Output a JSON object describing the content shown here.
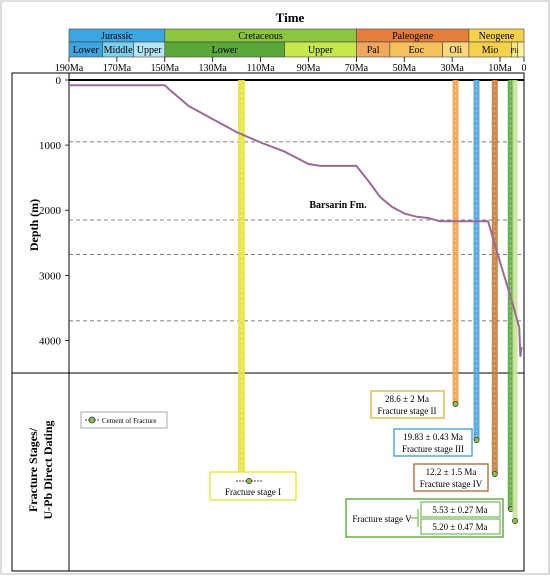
{
  "title": "Time",
  "eras": [
    {
      "label": "Jurassic",
      "start": 190,
      "end": 150,
      "color": "#3aa6e2"
    },
    {
      "label": "Cretaceous",
      "start": 150,
      "end": 70,
      "color": "#8cc63f"
    },
    {
      "label": "Paleogene",
      "start": 70,
      "end": 23,
      "color": "#e57e3a"
    },
    {
      "label": "Neogene",
      "start": 23,
      "end": 2.6,
      "color": "#f6d24c"
    }
  ],
  "epochs": [
    {
      "label": "Lower",
      "start": 190,
      "end": 176,
      "color": "#3aa6e2"
    },
    {
      "label": "Middle",
      "start": 176,
      "end": 163,
      "color": "#7fd0ee"
    },
    {
      "label": "Upper",
      "start": 163,
      "end": 150,
      "color": "#b3e5f5"
    },
    {
      "label": "Lower",
      "start": 150,
      "end": 100,
      "color": "#5aa83a"
    },
    {
      "label": "Upper",
      "start": 100,
      "end": 70,
      "color": "#c5e84a"
    },
    {
      "label": "Pal",
      "start": 70,
      "end": 56,
      "color": "#f0a85c"
    },
    {
      "label": "Eoc",
      "start": 56,
      "end": 34,
      "color": "#f7c25e"
    },
    {
      "label": "Oli",
      "start": 34,
      "end": 23,
      "color": "#fcd67a"
    },
    {
      "label": "Mio",
      "start": 23,
      "end": 5.3,
      "color": "#f6d24c"
    },
    {
      "label": "Pli",
      "start": 5.3,
      "end": 2.6,
      "color": "#f2ea7a"
    },
    {
      "label": "",
      "start": 2.6,
      "end": 0,
      "color": "#fff3a0"
    }
  ],
  "ticks": [
    "190Ma",
    "170Ma",
    "150Ma",
    "130Ma",
    "110Ma",
    "90Ma",
    "70Ma",
    "50Ma",
    "30Ma",
    "10Ma",
    "0"
  ],
  "tick_values": [
    190,
    170,
    150,
    130,
    110,
    90,
    70,
    50,
    30,
    10,
    0
  ],
  "colors": {
    "curve": "#9a6b95",
    "stage1": "#e6e63a",
    "stage2": "#f0a24a",
    "stage3": "#4aa3dc",
    "stage4": "#c77a3a",
    "stage5": "#5aa83a",
    "stage5b": "#c9e29a"
  },
  "chart_data": {
    "type": "line",
    "title": "Time",
    "xlabel": "",
    "ylabel": "Depth (m)",
    "xlim": [
      190,
      0
    ],
    "ylim": [
      0,
      4500
    ],
    "y_ticks": [
      0,
      1000,
      2000,
      3000,
      4000
    ],
    "y_tick_labels": [
      "0",
      "1000",
      "2000",
      "3000",
      "4000"
    ],
    "dashed_depths": [
      950,
      2150,
      2680,
      3700
    ],
    "series": [
      {
        "x": [
          190,
          150,
          148,
          140,
          130,
          120,
          110,
          100,
          90,
          85,
          80,
          75,
          70,
          65,
          60,
          55,
          50,
          45,
          40,
          35,
          30,
          25,
          20,
          15,
          10,
          5,
          2,
          1.5,
          1
        ],
        "y": [
          80,
          80,
          150,
          400,
          600,
          800,
          960,
          1100,
          1290,
          1320,
          1320,
          1320,
          1320,
          1550,
          1800,
          1950,
          2050,
          2100,
          2120,
          2170,
          2170,
          2170,
          2170,
          2170,
          2800,
          3400,
          3800,
          4250,
          4100
        ]
      }
    ]
  },
  "barsarin_label": "Barsarin Fm.",
  "lower_panel_label_line1": "Fracture Stages/",
  "lower_panel_label_line2": "U-Pb Direct Dating",
  "legend_label": "Cement of Fracture",
  "stages": [
    {
      "key": "stage1",
      "age": 118,
      "label": "Fracture stage I",
      "date": ""
    },
    {
      "key": "stage2",
      "age": 28.6,
      "label": "Fracture stage II",
      "date": "28.6 ± 2 Ma"
    },
    {
      "key": "stage3",
      "age": 19.83,
      "label": "Fracture stage III",
      "date": "19.83 ± 0.43 Ma"
    },
    {
      "key": "stage4",
      "age": 12.2,
      "label": "Fracture stage IV",
      "date": "12.2 ± 1.5 Ma"
    },
    {
      "key": "stage5",
      "age": 5.53,
      "label": "Fracture stage V",
      "date": ""
    }
  ],
  "stage5_dates": [
    "5.53 ± 0.27 Ma",
    "5.20 ± 0.47 Ma"
  ]
}
